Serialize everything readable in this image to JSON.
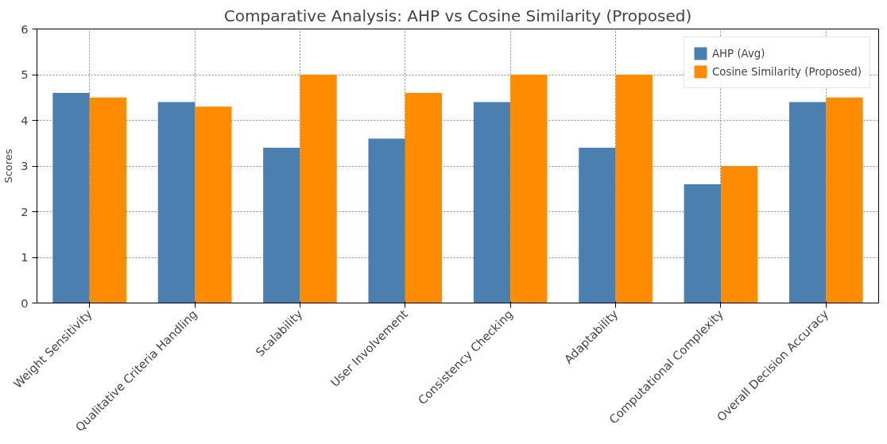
{
  "chart_data": {
    "type": "bar",
    "title": "Comparative Analysis: AHP vs Cosine Similarity (Proposed)",
    "ylabel": "Scores",
    "categories": [
      "Weight Sensitivity",
      "Qualitative Criteria Handling",
      "Scalability",
      "User Involvement",
      "Consistency Checking",
      "Adaptability",
      "Computational Complexity",
      "Overall Decision Accuracy"
    ],
    "series": [
      {
        "name": "AHP (Avg)",
        "color": "#4a7fb0",
        "values": [
          4.6,
          4.4,
          3.4,
          3.6,
          4.4,
          3.4,
          2.6,
          4.4
        ]
      },
      {
        "name": "Cosine Similarity (Proposed)",
        "color": "#ff8c00",
        "values": [
          4.5,
          4.3,
          5.0,
          4.6,
          5.0,
          5.0,
          3.0,
          4.5
        ]
      }
    ],
    "ylim": [
      0,
      6
    ],
    "yticks": [
      0,
      1,
      2,
      3,
      4,
      5,
      6
    ],
    "grid": true,
    "legend": "top right"
  }
}
